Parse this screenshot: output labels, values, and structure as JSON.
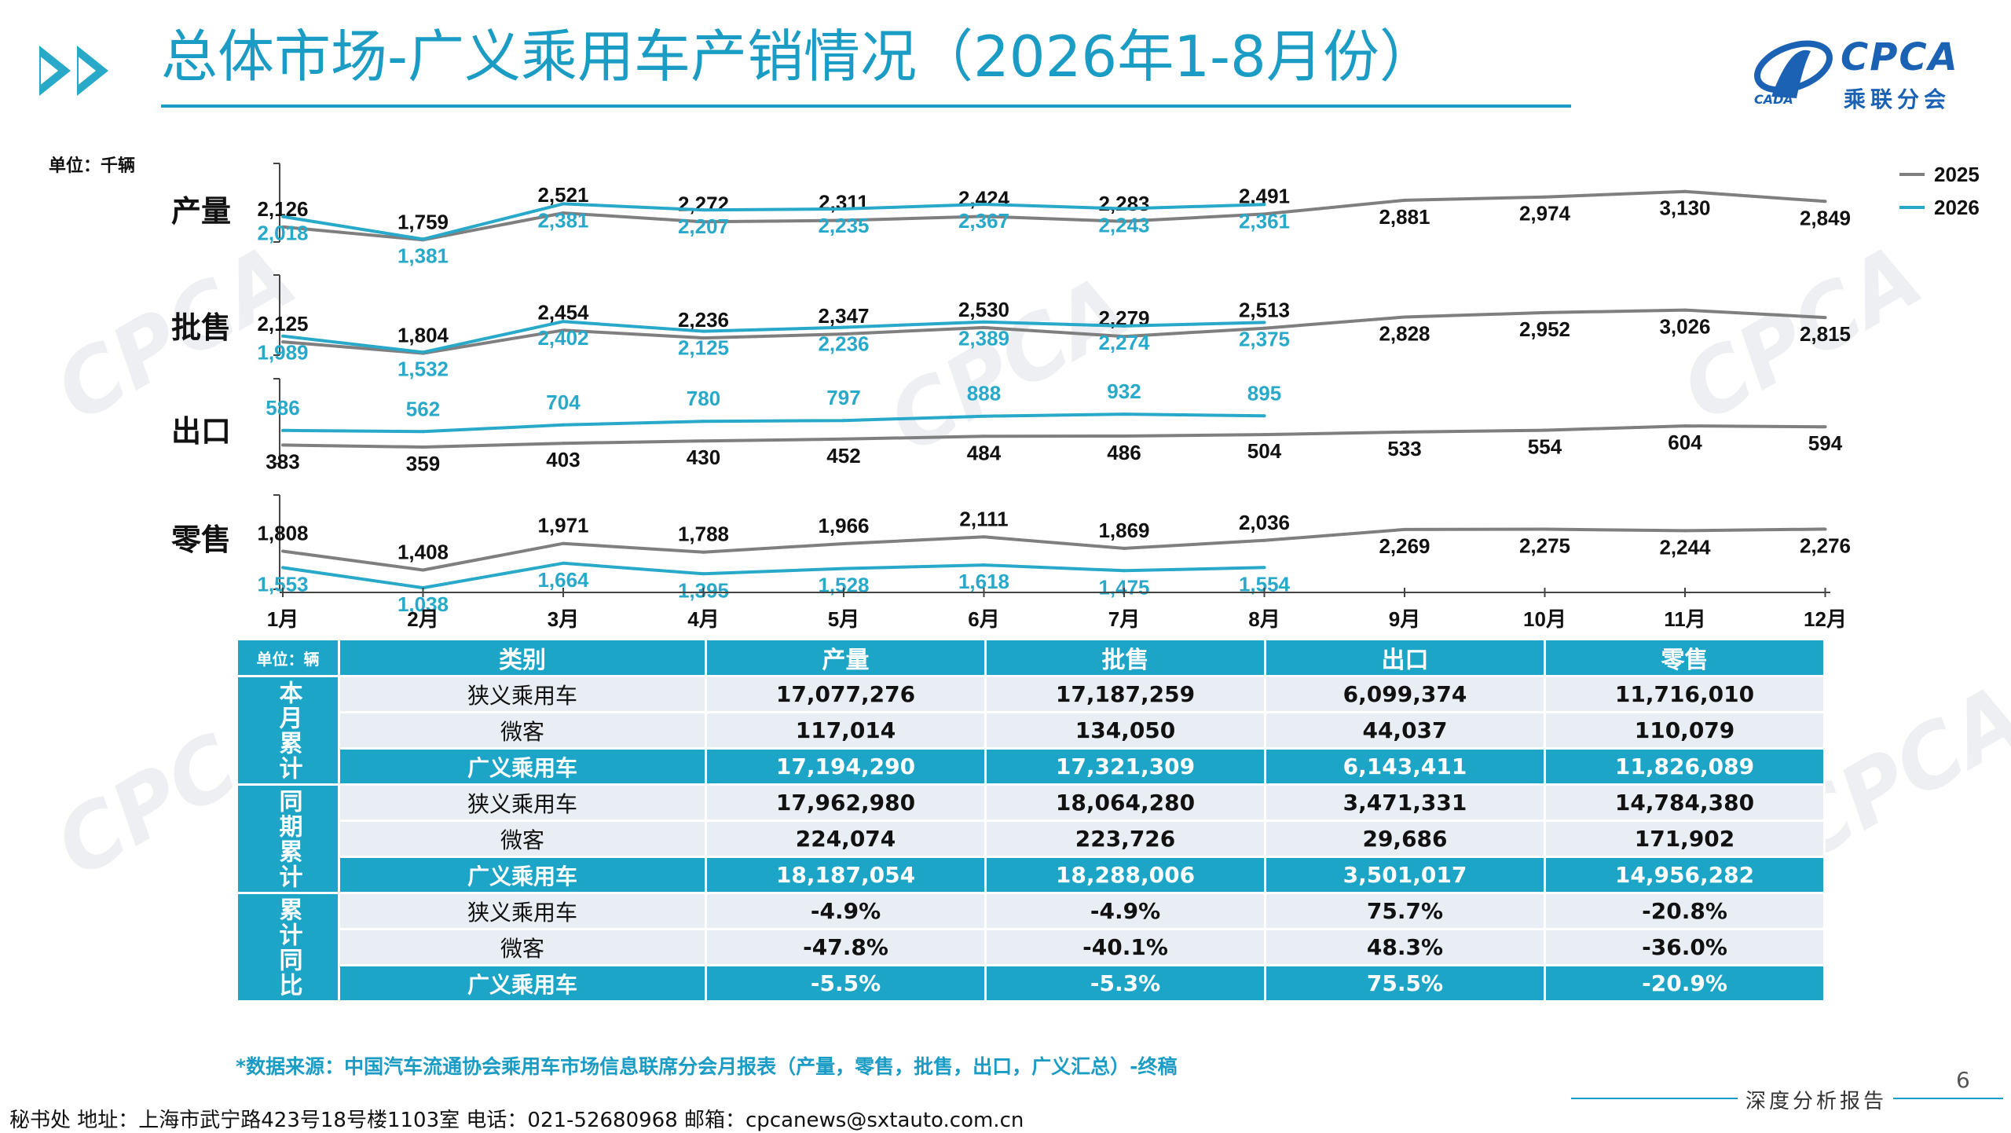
{
  "title": "总体市场-广义乘用车产销情况（2026年1-8月份）",
  "logo": {
    "name": "CPCA",
    "sub": "乘联分会",
    "mark": "CADA",
    "brand_color": "#1b62b5"
  },
  "colors": {
    "accent": "#1b9cc4",
    "line_2025": "#7f7f7f",
    "line_2026": "#29a9c9"
  },
  "chart_data": {
    "type": "line",
    "unit_label": "单位：千辆",
    "categories": [
      "1月",
      "2月",
      "3月",
      "4月",
      "5月",
      "6月",
      "7月",
      "8月",
      "9月",
      "10月",
      "11月",
      "12月"
    ],
    "legend": [
      "2025",
      "2026"
    ],
    "legend_position": "top-right",
    "panels": [
      {
        "name": "产量",
        "series": [
          {
            "name": "2025",
            "values": [
              2126,
              1759,
              2521,
              2272,
              2311,
              2424,
              2283,
              2491,
              2881,
              2974,
              3130,
              2849
            ],
            "labels": [
              "2,126",
              "1,759",
              "2,521",
              "2,272",
              "2,311",
              "2,424",
              "2,283",
              "2,491",
              "2,881",
              "2,974",
              "3,130",
              "2,849"
            ]
          },
          {
            "name": "2026",
            "values": [
              2018,
              1381,
              2381,
              2207,
              2235,
              2367,
              2243,
              2361
            ],
            "labels": [
              "2,018",
              "1,381",
              "2,381",
              "2,207",
              "2,235",
              "2,367",
              "2,243",
              "2,361"
            ]
          }
        ]
      },
      {
        "name": "批售",
        "series": [
          {
            "name": "2025",
            "values": [
              2125,
              1804,
              2454,
              2236,
              2347,
              2530,
              2279,
              2513,
              2828,
              2952,
              3026,
              2815
            ],
            "labels": [
              "2,125",
              "1,804",
              "2,454",
              "2,236",
              "2,347",
              "2,530",
              "2,279",
              "2,513",
              "2,828",
              "2,952",
              "3,026",
              "2,815"
            ]
          },
          {
            "name": "2026",
            "values": [
              1989,
              1532,
              2402,
              2125,
              2236,
              2389,
              2274,
              2375
            ],
            "labels": [
              "1,989",
              "1,532",
              "2,402",
              "2,125",
              "2,236",
              "2,389",
              "2,274",
              "2,375"
            ]
          }
        ]
      },
      {
        "name": "出口",
        "series": [
          {
            "name": "2025",
            "values": [
              383,
              359,
              403,
              430,
              452,
              484,
              486,
              504,
              533,
              554,
              604,
              594
            ],
            "labels": [
              "383",
              "359",
              "403",
              "430",
              "452",
              "484",
              "486",
              "504",
              "533",
              "554",
              "604",
              "594"
            ]
          },
          {
            "name": "2026",
            "values": [
              586,
              562,
              704,
              780,
              797,
              888,
              932,
              895
            ],
            "labels": [
              "586",
              "562",
              "704",
              "780",
              "797",
              "888",
              "932",
              "895"
            ]
          }
        ]
      },
      {
        "name": "零售",
        "series": [
          {
            "name": "2025",
            "values": [
              1808,
              1408,
              1971,
              1788,
              1966,
              2111,
              1869,
              2036,
              2269,
              2275,
              2244,
              2276
            ],
            "labels": [
              "1,808",
              "1,408",
              "1,971",
              "1,788",
              "1,966",
              "2,111",
              "1,869",
              "2,036",
              "2,269",
              "2,275",
              "2,244",
              "2,276"
            ]
          },
          {
            "name": "2026",
            "values": [
              1553,
              1038,
              1664,
              1395,
              1528,
              1618,
              1475,
              1554
            ],
            "labels": [
              "1,553",
              "1,038",
              "1,664",
              "1,395",
              "1,528",
              "1,618",
              "1,475",
              "1,554"
            ]
          }
        ]
      }
    ]
  },
  "table": {
    "unit": "单位：辆",
    "headers": [
      "类别",
      "产量",
      "批售",
      "出口",
      "零售"
    ],
    "groups": [
      {
        "label": "本月累计",
        "rows": [
          {
            "category": "狭义乘用车",
            "values": [
              "17,077,276",
              "17,187,259",
              "6,099,374",
              "11,716,010"
            ]
          },
          {
            "category": "微客",
            "values": [
              "117,014",
              "134,050",
              "44,037",
              "110,079"
            ]
          },
          {
            "category": "广义乘用车",
            "values": [
              "17,194,290",
              "17,321,309",
              "6,143,411",
              "11,826,089"
            ]
          }
        ]
      },
      {
        "label": "同期累计",
        "rows": [
          {
            "category": "狭义乘用车",
            "values": [
              "17,962,980",
              "18,064,280",
              "3,471,331",
              "14,784,380"
            ]
          },
          {
            "category": "微客",
            "values": [
              "224,074",
              "223,726",
              "29,686",
              "171,902"
            ]
          },
          {
            "category": "广义乘用车",
            "values": [
              "18,187,054",
              "18,288,006",
              "3,501,017",
              "14,956,282"
            ]
          }
        ]
      },
      {
        "label": "累计同比",
        "rows": [
          {
            "category": "狭义乘用车",
            "values": [
              "-4.9%",
              "-4.9%",
              "75.7%",
              "-20.8%"
            ]
          },
          {
            "category": "微客",
            "values": [
              "-47.8%",
              "-40.1%",
              "48.3%",
              "-36.0%"
            ]
          },
          {
            "category": "广义乘用车",
            "values": [
              "-5.5%",
              "-5.3%",
              "75.5%",
              "-20.9%"
            ]
          }
        ]
      }
    ]
  },
  "source_note": "*数据来源：中国汽车流通协会乘用车市场信息联席分会月报表（产量，零售，批售，出口，广义汇总）-终稿",
  "page_number": "6",
  "report_label": "深度分析报告",
  "footer": "秘书处  地址：上海市武宁路423号18号楼1103室  电话：021-52680968   邮箱：cpcanews@sxtauto.com.cn"
}
